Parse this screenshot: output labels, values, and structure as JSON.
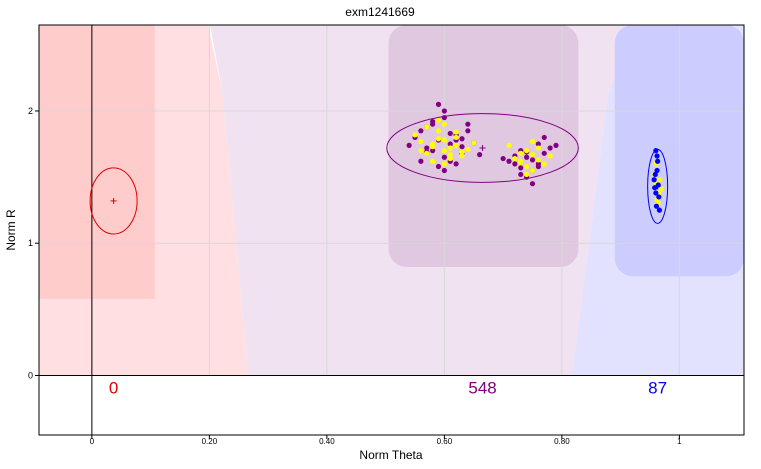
{
  "chart_data": {
    "type": "scatter",
    "title": "exm1241669",
    "xlabel": "Norm Theta",
    "ylabel": "Norm R",
    "xlim": [
      -0.09,
      1.11
    ],
    "ylim": [
      -0.45,
      2.65
    ],
    "x_ticks": [
      {
        "value": 0,
        "label": "0"
      },
      {
        "value": 0.2,
        "label": "0.20"
      },
      {
        "value": 0.4,
        "label": "0.40"
      },
      {
        "value": 0.6,
        "label": "0.60"
      },
      {
        "value": 0.8,
        "label": "0.80"
      },
      {
        "value": 1.0,
        "label": "1"
      }
    ],
    "y_ticks": [
      {
        "value": 0,
        "label": "0"
      },
      {
        "value": 1,
        "label": "1"
      },
      {
        "value": 2,
        "label": "2"
      }
    ],
    "grid": true,
    "clusters": [
      {
        "count_label": "0",
        "color": "#e00000",
        "center": [
          0.037,
          1.32
        ],
        "ellipse_radii": [
          0.04,
          0.25
        ]
      },
      {
        "count_label": "548",
        "color": "#800080",
        "center": [
          0.665,
          1.72
        ],
        "ellipse_radii": [
          0.163,
          0.26
        ]
      },
      {
        "count_label": "87",
        "color": "#0000e0",
        "center": [
          0.963,
          1.43
        ],
        "ellipse_radii": [
          0.017,
          0.28
        ]
      }
    ],
    "point_colors": {
      "cluster_mid": "#800080",
      "cluster_right": "#0000ff",
      "yellow": "#ffff00"
    },
    "series": [
      {
        "color": "#800080",
        "x": [
          0.57,
          0.59,
          0.6,
          0.62,
          0.58,
          0.61,
          0.63,
          0.55,
          0.56,
          0.64,
          0.6,
          0.58,
          0.62,
          0.65,
          0.57,
          0.59,
          0.61,
          0.63,
          0.6,
          0.54,
          0.66,
          0.58,
          0.62,
          0.6,
          0.57,
          0.64,
          0.59,
          0.61,
          0.56,
          0.63,
          0.72,
          0.74,
          0.76,
          0.73,
          0.75,
          0.77,
          0.71,
          0.78,
          0.74,
          0.76,
          0.72,
          0.75,
          0.73,
          0.77,
          0.74,
          0.7,
          0.79,
          0.75,
          0.76,
          0.73
        ],
        "y": [
          1.72,
          1.78,
          1.65,
          1.82,
          1.9,
          1.75,
          1.68,
          1.8,
          1.62,
          1.85,
          1.95,
          1.7,
          1.6,
          1.76,
          1.88,
          1.58,
          1.83,
          1.73,
          2.0,
          1.74,
          1.67,
          1.92,
          1.78,
          1.55,
          1.69,
          1.9,
          2.05,
          1.62,
          1.85,
          1.79,
          1.6,
          1.65,
          1.58,
          1.7,
          1.55,
          1.68,
          1.62,
          1.72,
          1.5,
          1.75,
          1.66,
          1.63,
          1.57,
          1.8,
          1.69,
          1.64,
          1.74,
          1.45,
          1.6,
          1.52
        ]
      },
      {
        "color": "#ffff00",
        "x": [
          0.58,
          0.6,
          0.62,
          0.57,
          0.59,
          0.61,
          0.56,
          0.63,
          0.6,
          0.58,
          0.62,
          0.55,
          0.64,
          0.59,
          0.61,
          0.57,
          0.6,
          0.63,
          0.58,
          0.62,
          0.6,
          0.65,
          0.56,
          0.59,
          0.61,
          0.73,
          0.75,
          0.74,
          0.76,
          0.72,
          0.77,
          0.74,
          0.75,
          0.73,
          0.76,
          0.71,
          0.78,
          0.74,
          0.75,
          0.73,
          0.96,
          0.965,
          0.958,
          0.97,
          0.962,
          0.967,
          0.96,
          0.964
        ],
        "y": [
          1.75,
          1.7,
          1.8,
          1.68,
          1.85,
          1.72,
          1.77,
          1.66,
          1.9,
          1.62,
          1.74,
          1.82,
          1.71,
          1.79,
          1.64,
          1.88,
          1.78,
          1.69,
          1.73,
          1.84,
          1.6,
          1.76,
          1.7,
          1.93,
          1.67,
          1.62,
          1.67,
          1.58,
          1.72,
          1.64,
          1.6,
          1.7,
          1.55,
          1.68,
          1.63,
          1.74,
          1.66,
          1.52,
          1.77,
          1.61,
          1.45,
          1.38,
          1.52,
          1.41,
          1.33,
          1.48,
          1.6,
          1.3
        ]
      },
      {
        "color": "#0000ff",
        "x": [
          0.96,
          0.962,
          0.958,
          0.965,
          0.961,
          0.957,
          0.963,
          0.96,
          0.966,
          0.959,
          0.962,
          0.964
        ],
        "y": [
          1.7,
          1.55,
          1.42,
          1.35,
          1.28,
          1.48,
          1.62,
          1.38,
          1.25,
          1.52,
          1.66,
          1.44
        ]
      }
    ],
    "regions": [
      {
        "color": "#ffcccc",
        "theta_range": [
          -0.09,
          0.107
        ],
        "r_range": [
          0.58,
          2.65
        ]
      },
      {
        "color": "#e0c8e0",
        "theta_range": [
          0.505,
          0.828
        ],
        "r_range": [
          0.82,
          2.65
        ]
      },
      {
        "color": "#ccccff",
        "theta_range": [
          0.89,
          1.11
        ],
        "r_range": [
          0.75,
          2.65
        ]
      }
    ]
  }
}
